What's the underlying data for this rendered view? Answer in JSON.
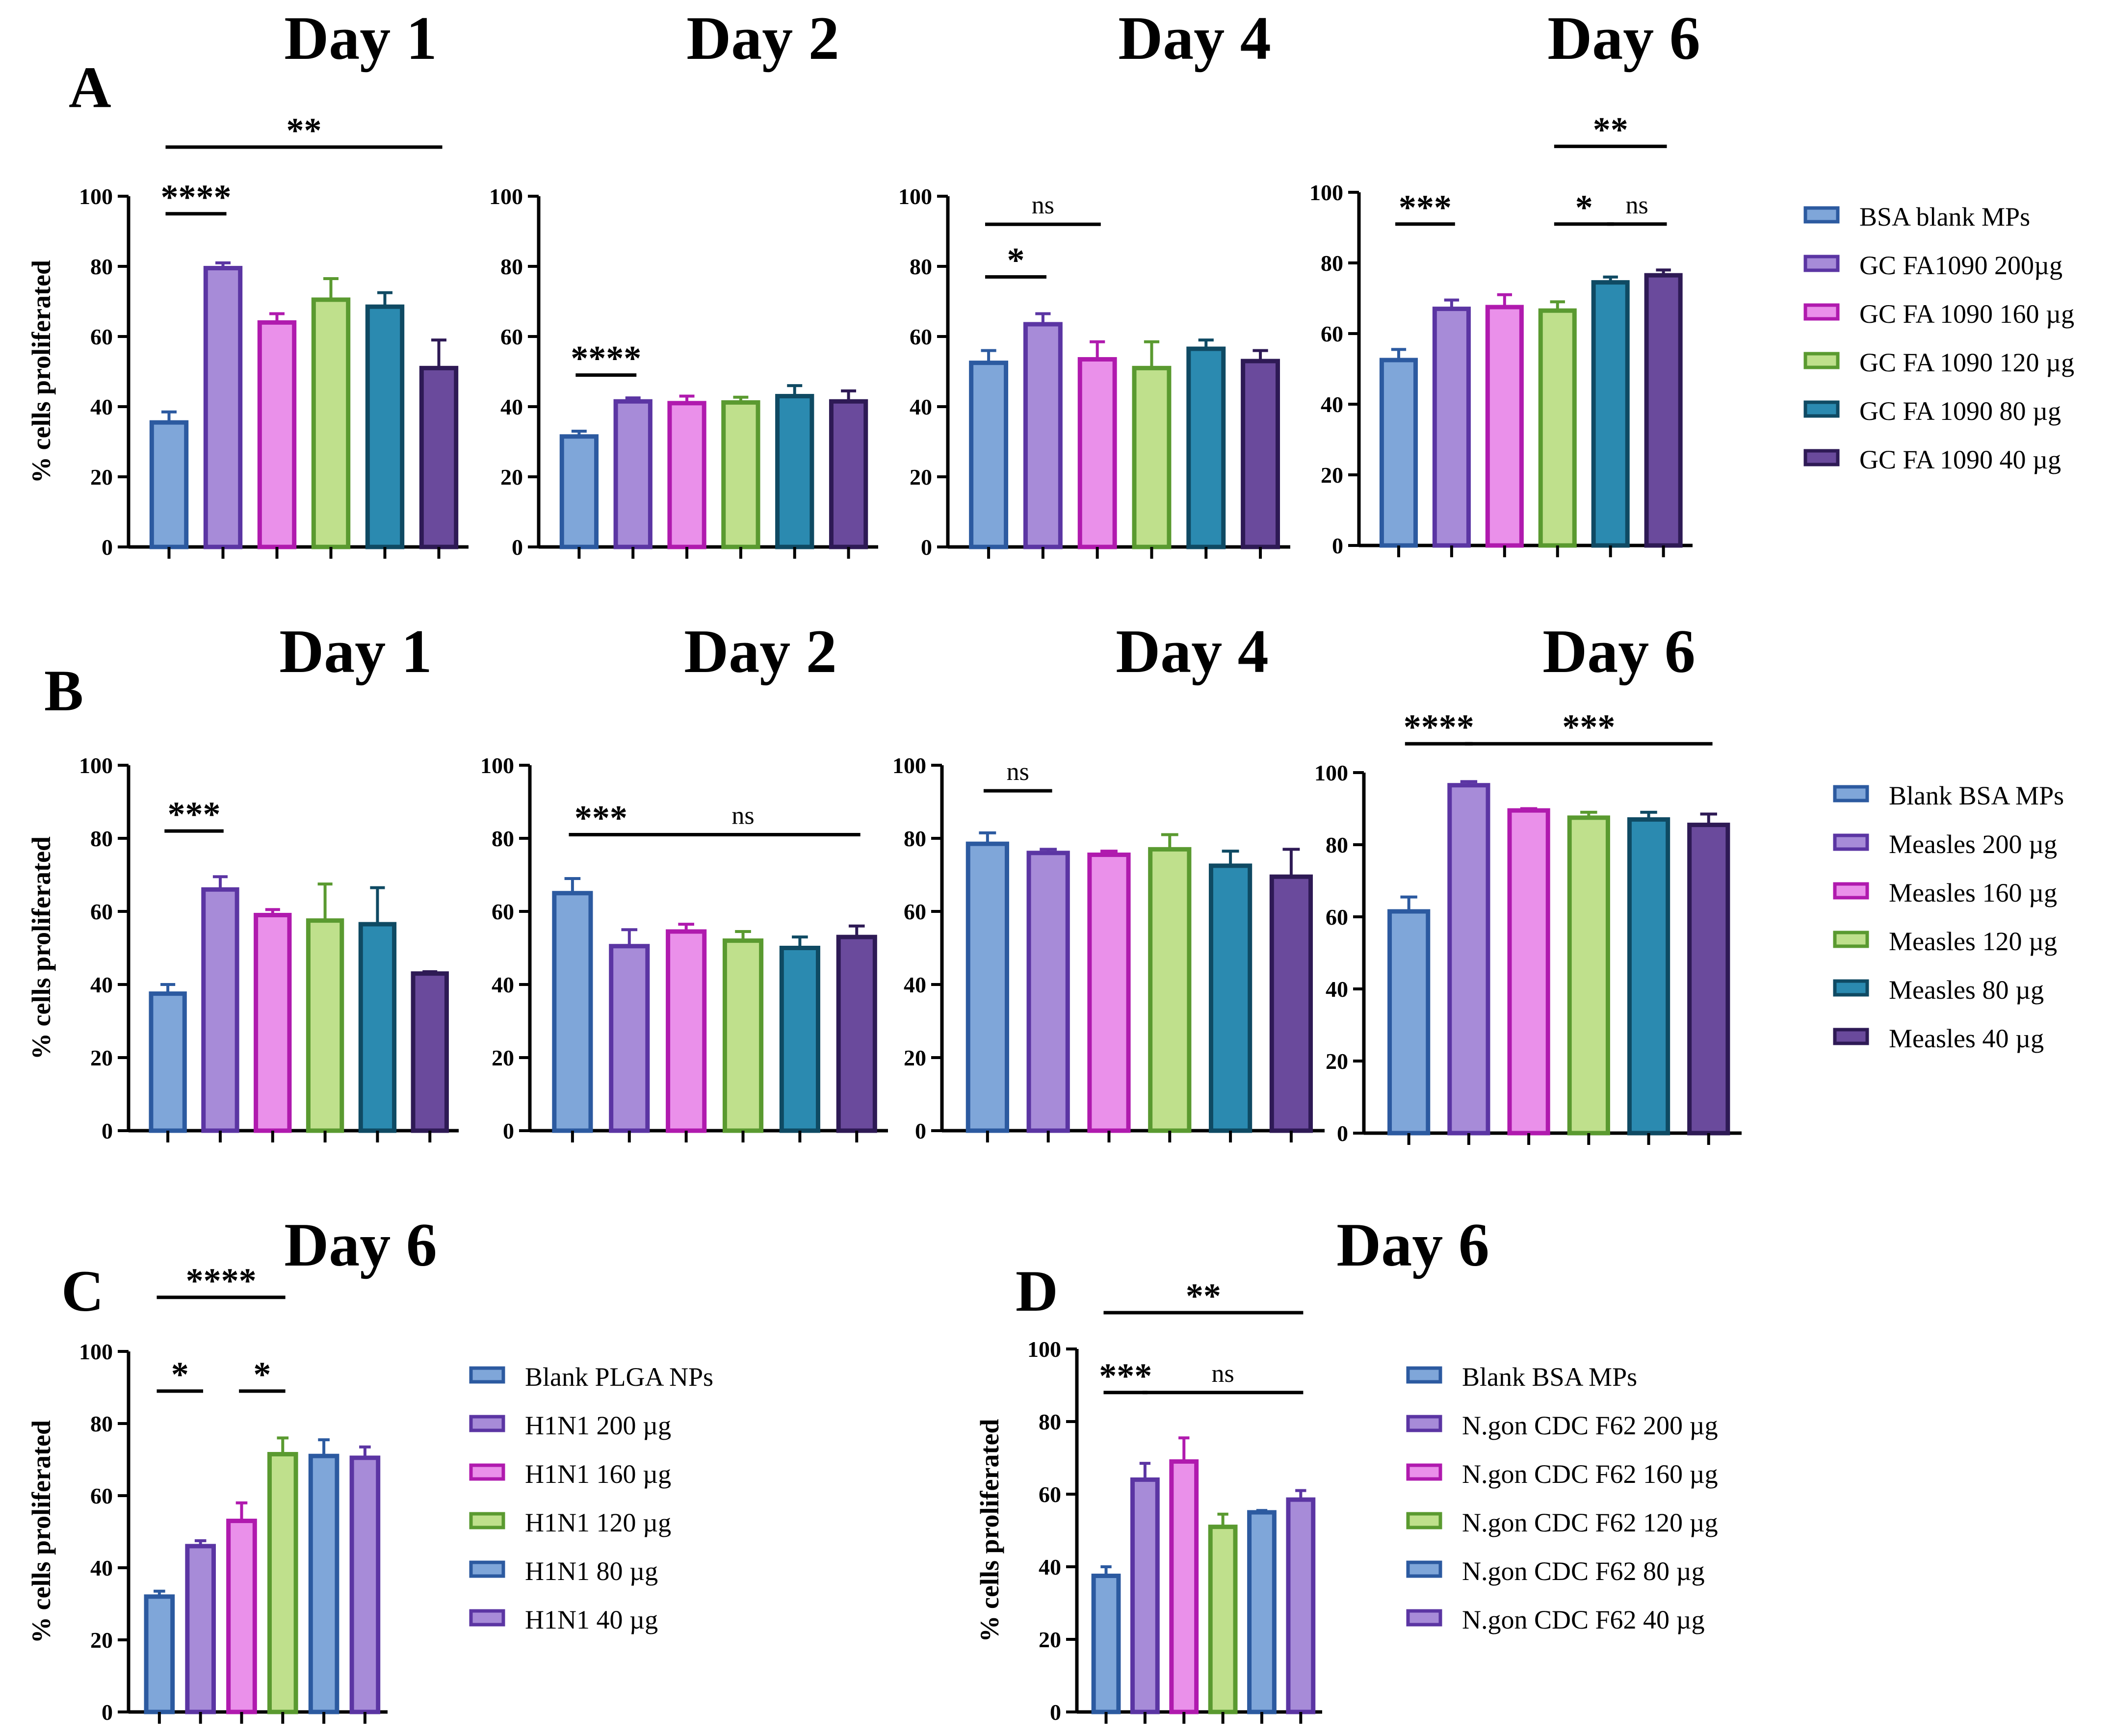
{
  "colors": {
    "c1": {
      "fill": "#7fa6d9",
      "stroke": "#2c5aa0"
    },
    "c2": {
      "fill": "#a78bd8",
      "stroke": "#5b35a3"
    },
    "c3": {
      "fill": "#ea90ea",
      "stroke": "#b01aae"
    },
    "c4": {
      "fill": "#bfe08c",
      "stroke": "#5a9a30"
    },
    "c5": {
      "fill": "#2b8ab0",
      "stroke": "#0f4a63"
    },
    "c6": {
      "fill": "#6a4a9c",
      "stroke": "#2e1a55"
    }
  },
  "panel_labels": [
    "A",
    "B",
    "C",
    "D"
  ],
  "ylabel": "% cells proliferated",
  "legends": {
    "A": [
      "BSA blank MPs",
      "GC FA1090 200µg",
      "GC FA 1090 160 µg",
      "GC FA 1090 120 µg",
      "GC FA 1090 80 µg",
      "GC FA 1090 40 µg"
    ],
    "B": [
      "Blank BSA MPs",
      "Measles 200 µg",
      "Measles 160 µg",
      "Measles 120 µg",
      "Measles 80 µg",
      "Measles 40 µg"
    ],
    "C": [
      "Blank PLGA NPs",
      "H1N1 200 µg",
      "H1N1 160 µg",
      "H1N1 120 µg",
      "H1N1 80 µg",
      "H1N1 40 µg"
    ],
    "D": [
      "Blank BSA MPs",
      "N.gon CDC F62 200 µg",
      "N.gon CDC F62 160 µg",
      "N.gon CDC F62 120 µg",
      "N.gon CDC F62 80 µg",
      "N.gon CDC F62 40 µg"
    ]
  },
  "chart_data": [
    {
      "id": "A1",
      "type": "bar",
      "title": "Day 1",
      "ylabel": "% cells proliferated",
      "ylim": [
        0,
        100
      ],
      "yticks": [
        0,
        20,
        40,
        60,
        80,
        100
      ],
      "values": [
        35.5,
        79.5,
        64,
        70.5,
        68.5,
        51
      ],
      "errors": [
        3,
        1.5,
        2.5,
        6,
        4,
        8
      ],
      "colors": [
        "c1",
        "c2",
        "c3",
        "c4",
        "c5",
        "c6"
      ],
      "sig": [
        {
          "from": 0,
          "to": 1,
          "label": "****",
          "y": 95
        },
        {
          "from": 0,
          "to": 5,
          "label": "**",
          "y": 114
        }
      ]
    },
    {
      "id": "A2",
      "type": "bar",
      "title": "Day 2",
      "ylim": [
        0,
        100
      ],
      "yticks": [
        0,
        20,
        40,
        60,
        80,
        100
      ],
      "values": [
        31.5,
        41.5,
        41,
        41.2,
        43,
        41.5
      ],
      "errors": [
        1.5,
        1,
        2,
        1.5,
        3,
        3
      ],
      "colors": [
        "c1",
        "c2",
        "c3",
        "c4",
        "c5",
        "c6"
      ],
      "sig": [
        {
          "from": 0,
          "to": 1,
          "label": "****",
          "y": 49
        }
      ]
    },
    {
      "id": "A3",
      "type": "bar",
      "title": "Day 4",
      "ylim": [
        0,
        100
      ],
      "yticks": [
        0,
        20,
        40,
        60,
        80,
        100
      ],
      "values": [
        52.5,
        63.5,
        53.5,
        51,
        56.5,
        53
      ],
      "errors": [
        3.5,
        3,
        5,
        7.5,
        2.5,
        3
      ],
      "colors": [
        "c1",
        "c2",
        "c3",
        "c4",
        "c5",
        "c6"
      ],
      "sig": [
        {
          "from": 0,
          "to": 1,
          "label": "*",
          "y": 77
        },
        {
          "from": 0,
          "to": 2,
          "label": "ns",
          "y": 92
        }
      ]
    },
    {
      "id": "A4",
      "type": "bar",
      "title": "Day 6",
      "ylim": [
        0,
        100
      ],
      "yticks": [
        0,
        20,
        40,
        60,
        80,
        100
      ],
      "values": [
        52.5,
        67,
        67.5,
        66.5,
        74.5,
        76.5
      ],
      "errors": [
        3,
        2.5,
        3.5,
        2.5,
        1.5,
        1.5
      ],
      "colors": [
        "c1",
        "c2",
        "c3",
        "c4",
        "c5",
        "c6"
      ],
      "sig": [
        {
          "from": 0,
          "to": 1,
          "label": "***",
          "y": 91
        },
        {
          "from": 3,
          "to": 4,
          "label": "*",
          "y": 91
        },
        {
          "from": 4,
          "to": 5,
          "label": "ns",
          "y": 91
        },
        {
          "from": 3,
          "to": 5,
          "label": "**",
          "y": 113
        }
      ]
    },
    {
      "id": "B1",
      "type": "bar",
      "title": "Day 1",
      "ylabel": "% cells proliferated",
      "ylim": [
        0,
        100
      ],
      "yticks": [
        0,
        20,
        40,
        60,
        80,
        100
      ],
      "values": [
        37.5,
        66,
        59,
        57.5,
        56.5,
        43
      ],
      "errors": [
        2.5,
        3.5,
        1.5,
        10,
        10,
        0.5
      ],
      "colors": [
        "c1",
        "c2",
        "c3",
        "c4",
        "c5",
        "c6"
      ],
      "sig": [
        {
          "from": 0,
          "to": 1,
          "label": "***",
          "y": 82
        }
      ]
    },
    {
      "id": "B2",
      "type": "bar",
      "title": "Day 2",
      "ylim": [
        0,
        100
      ],
      "yticks": [
        0,
        20,
        40,
        60,
        80,
        100
      ],
      "values": [
        65,
        50.5,
        54.5,
        52,
        50,
        53
      ],
      "errors": [
        4,
        4.5,
        2,
        2.5,
        3,
        3
      ],
      "colors": [
        "c1",
        "c2",
        "c3",
        "c4",
        "c5",
        "c6"
      ],
      "sig": [
        {
          "from": 0,
          "to": 1,
          "label": "***",
          "y": 81
        },
        {
          "from": 1,
          "to": 5,
          "label": "ns",
          "y": 81
        }
      ]
    },
    {
      "id": "B3",
      "type": "bar",
      "title": "Day 4",
      "ylim": [
        0,
        100
      ],
      "yticks": [
        0,
        20,
        40,
        60,
        80,
        100
      ],
      "values": [
        78.5,
        76,
        75.5,
        77,
        72.5,
        69.5
      ],
      "errors": [
        3,
        1,
        1,
        4,
        4,
        7.5
      ],
      "colors": [
        "c1",
        "c2",
        "c3",
        "c4",
        "c5",
        "c6"
      ],
      "sig": [
        {
          "from": 0,
          "to": 1,
          "label": "ns",
          "y": 93
        }
      ]
    },
    {
      "id": "B4",
      "type": "bar",
      "title": "Day 6",
      "ylim": [
        0,
        100
      ],
      "yticks": [
        0,
        20,
        40,
        60,
        80,
        100
      ],
      "values": [
        61.5,
        96.5,
        89.5,
        87.5,
        87,
        85.5
      ],
      "errors": [
        4,
        1,
        0.5,
        1.5,
        2,
        3
      ],
      "colors": [
        "c1",
        "c2",
        "c3",
        "c4",
        "c5",
        "c6"
      ],
      "sig": [
        {
          "from": 0,
          "to": 1,
          "label": "****",
          "y": 108
        },
        {
          "from": 1,
          "to": 5,
          "label": "***",
          "y": 108
        }
      ]
    },
    {
      "id": "C",
      "type": "bar",
      "title": "Day 6",
      "ylabel": "% cells proliferated",
      "ylim": [
        0,
        100
      ],
      "yticks": [
        0,
        20,
        40,
        60,
        80,
        100
      ],
      "values": [
        32,
        46,
        53,
        71.5,
        71,
        70.5
      ],
      "errors": [
        1.5,
        1.5,
        5,
        4.5,
        4.5,
        3
      ],
      "colors": [
        "c1",
        "c2",
        "c3",
        "c4",
        "c1",
        "c2"
      ],
      "sig": [
        {
          "from": 0,
          "to": 1,
          "label": "*",
          "y": 89
        },
        {
          "from": 2,
          "to": 3,
          "label": "*",
          "y": 89
        },
        {
          "from": 0,
          "to": 3,
          "label": "****",
          "y": 115
        }
      ]
    },
    {
      "id": "D",
      "type": "bar",
      "title": "Day 6",
      "ylabel": "% cells proliferated",
      "ylim": [
        0,
        100
      ],
      "yticks": [
        0,
        20,
        40,
        60,
        80,
        100
      ],
      "values": [
        37.5,
        64,
        69,
        51,
        55,
        58.5
      ],
      "errors": [
        2.5,
        4.5,
        6.5,
        3.5,
        0.5,
        2.5
      ],
      "colors": [
        "c1",
        "c2",
        "c3",
        "c4",
        "c1",
        "c2"
      ],
      "sig": [
        {
          "from": 0,
          "to": 1,
          "label": "***",
          "y": 88
        },
        {
          "from": 1,
          "to": 5,
          "label": "ns",
          "y": 88
        },
        {
          "from": 0,
          "to": 5,
          "label": "**",
          "y": 110
        }
      ]
    }
  ]
}
